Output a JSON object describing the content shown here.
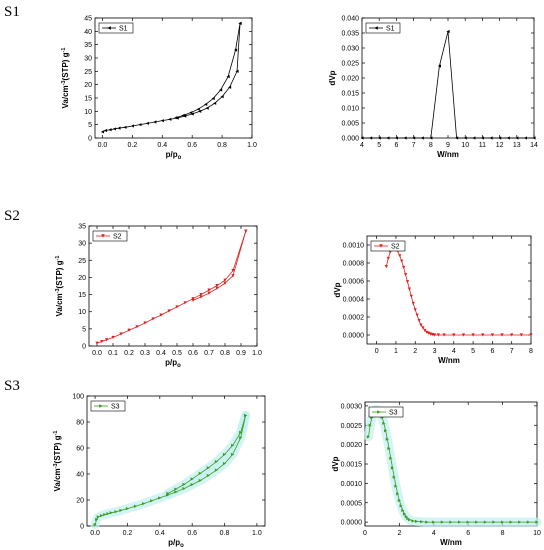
{
  "row_labels": [
    "S1",
    "S2",
    "S3"
  ],
  "chart_data": [
    {
      "id": "s1-iso",
      "type": "line",
      "sample": "S1",
      "color": "#000000",
      "marker": "tri-left",
      "legend": "S1",
      "xlabel": "p/p",
      "xlabel_sub": "o",
      "ylabel": "Va/cm",
      "ylabel_sup": "-3",
      "ylabel_tail": "(STP) g",
      "xlim": [
        -0.05,
        1.0
      ],
      "ylim": [
        0,
        45
      ],
      "xticks": [
        0.0,
        0.2,
        0.4,
        0.6,
        0.8,
        1.0
      ],
      "yticks": [
        0,
        5,
        10,
        15,
        20,
        25,
        30,
        35,
        40,
        45
      ],
      "tick_dec_x": 1,
      "tick_dec_y": 0,
      "series": [
        {
          "x": [
            0.0,
            0.02,
            0.05,
            0.08,
            0.11,
            0.15,
            0.2,
            0.25,
            0.3,
            0.35,
            0.4,
            0.45,
            0.5,
            0.55,
            0.6,
            0.65,
            0.7,
            0.75,
            0.8,
            0.85,
            0.9,
            0.92
          ],
          "y": [
            2.3,
            2.8,
            3.1,
            3.4,
            3.7,
            4.0,
            4.5,
            5.0,
            5.5,
            6.0,
            6.5,
            7.0,
            7.5,
            8.2,
            9.0,
            10.0,
            11.2,
            13.0,
            15.5,
            19.0,
            25.0,
            43.0
          ]
        },
        {
          "x": [
            0.92,
            0.89,
            0.84,
            0.79,
            0.74,
            0.69,
            0.64,
            0.59,
            0.54,
            0.49
          ],
          "y": [
            43.0,
            33.0,
            23.0,
            18.0,
            14.8,
            12.6,
            10.8,
            9.5,
            8.5,
            7.6
          ]
        }
      ]
    },
    {
      "id": "s1-psd",
      "type": "line",
      "sample": "S1",
      "color": "#000000",
      "marker": "tri-left",
      "legend": "S1",
      "xlabel": "W/nm",
      "ylabel": "dVp",
      "xlim": [
        4,
        14
      ],
      "ylim": [
        0,
        0.04
      ],
      "xticks": [
        4,
        5,
        6,
        7,
        8,
        9,
        10,
        11,
        12,
        13,
        14
      ],
      "yticks": [
        0.0,
        0.005,
        0.01,
        0.015,
        0.02,
        0.025,
        0.03,
        0.035,
        0.04
      ],
      "tick_dec_x": 0,
      "tick_dec_y": 3,
      "series": [
        {
          "x": [
            4.0,
            4.5,
            5.0,
            5.5,
            6.0,
            6.5,
            7.0,
            7.5,
            8.0,
            8.5,
            9.0,
            9.5,
            10.0,
            10.5,
            11.0,
            11.5,
            12.0,
            12.5,
            13.0,
            13.5,
            14.0
          ],
          "y": [
            0.0,
            0.0,
            0.0,
            0.0,
            0.0,
            0.0,
            0.0,
            0.0,
            0.0,
            0.024,
            0.0355,
            0.0,
            0.0,
            0.0,
            0.0,
            0.0,
            0.0,
            0.0,
            0.0,
            0.0,
            0.0
          ]
        }
      ]
    },
    {
      "id": "s2-iso",
      "type": "line",
      "sample": "S2",
      "color": "#e0201e",
      "marker": "tri-down",
      "legend": "S2",
      "xlabel": "p/p",
      "xlabel_sub": "o",
      "ylabel": "Va/cm",
      "ylabel_sup": "-3",
      "ylabel_tail": "(STP) g",
      "xlim": [
        -0.05,
        1.0
      ],
      "ylim": [
        0,
        35
      ],
      "xticks": [
        0.0,
        0.1,
        0.2,
        0.3,
        0.4,
        0.5,
        0.6,
        0.7,
        0.8,
        0.9,
        1.0
      ],
      "yticks": [
        0,
        5,
        10,
        15,
        20,
        25,
        30,
        35
      ],
      "tick_dec_x": 1,
      "tick_dec_y": 0,
      "series": [
        {
          "x": [
            0.0,
            0.03,
            0.06,
            0.1,
            0.15,
            0.2,
            0.25,
            0.3,
            0.35,
            0.4,
            0.45,
            0.5,
            0.55,
            0.6,
            0.65,
            0.7,
            0.75,
            0.8,
            0.85,
            0.93
          ],
          "y": [
            0.8,
            1.3,
            1.8,
            2.5,
            3.5,
            4.6,
            5.6,
            6.7,
            7.9,
            9.0,
            10.2,
            11.4,
            12.6,
            13.8,
            15.0,
            16.3,
            17.6,
            19.2,
            22.0,
            33.5
          ]
        },
        {
          "x": [
            0.93,
            0.85,
            0.8,
            0.75,
            0.7,
            0.65,
            0.6
          ],
          "y": [
            33.5,
            20.5,
            18.3,
            16.8,
            15.4,
            14.3,
            13.3
          ]
        }
      ]
    },
    {
      "id": "s2-psd",
      "type": "line",
      "sample": "S2",
      "color": "#e0201e",
      "marker": "tri-down",
      "legend": "S2",
      "xlabel": "W/nm",
      "ylabel": "dVp",
      "xlim": [
        -0.5,
        8
      ],
      "ylim": [
        -0.0001,
        0.0011
      ],
      "xticks": [
        0,
        1,
        2,
        3,
        4,
        5,
        6,
        7,
        8
      ],
      "yticks": [
        0.0,
        0.0002,
        0.0004,
        0.0006,
        0.0008,
        0.001
      ],
      "tick_dec_x": 0,
      "tick_dec_y": 4,
      "series": [
        {
          "x": [
            0.5,
            0.6,
            0.7,
            0.8,
            0.9,
            1.0,
            1.1,
            1.2,
            1.3,
            1.4,
            1.5,
            1.6,
            1.7,
            1.8,
            1.9,
            2.0,
            2.1,
            2.2,
            2.3,
            2.4,
            2.5,
            2.6,
            2.7,
            2.8,
            2.9,
            3.0,
            3.2,
            3.5,
            4.0,
            4.5,
            5.0,
            5.5,
            6.0,
            6.5,
            7.0,
            7.5,
            8.0
          ],
          "y": [
            0.00076,
            0.00085,
            0.00092,
            0.00096,
            0.00097,
            0.00096,
            0.00093,
            0.00088,
            0.00082,
            0.00075,
            0.00067,
            0.00059,
            0.00051,
            0.00043,
            0.00035,
            0.00028,
            0.00022,
            0.00016,
            0.00011,
            8e-05,
            5e-05,
            3e-05,
            2e-05,
            1e-05,
            5e-06,
            0.0,
            0.0,
            0.0,
            0.0,
            0.0,
            0.0,
            0.0,
            0.0,
            0.0,
            0.0,
            0.0,
            0.0
          ]
        }
      ]
    },
    {
      "id": "s3-iso",
      "type": "line",
      "sample": "S3",
      "color": "#3a9a1e",
      "marker": "tri-right",
      "legend": "S3",
      "xlabel": "p/p",
      "xlabel_sub": "o",
      "ylabel": "Va/cm",
      "ylabel_sup": "-3",
      "ylabel_tail": "(STP) g",
      "xlim": [
        -0.05,
        1.05
      ],
      "ylim": [
        0,
        100
      ],
      "xticks": [
        0.0,
        0.2,
        0.4,
        0.6,
        0.8,
        1.0
      ],
      "yticks": [
        0,
        20,
        40,
        60,
        80,
        100
      ],
      "tick_dec_x": 1,
      "tick_dec_y": 0,
      "series": [
        {
          "x": [
            0.0,
            0.01,
            0.02,
            0.04,
            0.06,
            0.08,
            0.1,
            0.13,
            0.16,
            0.2,
            0.25,
            0.3,
            0.35,
            0.4,
            0.45,
            0.5,
            0.55,
            0.6,
            0.65,
            0.7,
            0.75,
            0.8,
            0.85,
            0.9,
            0.93
          ],
          "y": [
            1.0,
            5.0,
            7.0,
            8.0,
            8.8,
            9.5,
            10.2,
            11.0,
            12.0,
            13.4,
            15.2,
            17.2,
            19.4,
            21.6,
            23.8,
            26.2,
            28.8,
            31.8,
            35.0,
            38.8,
            43.0,
            48.0,
            55.0,
            68.0,
            85.0
          ]
        },
        {
          "x": [
            0.93,
            0.9,
            0.85,
            0.8,
            0.75,
            0.7,
            0.65,
            0.6,
            0.55,
            0.5,
            0.45
          ],
          "y": [
            85.0,
            72.0,
            62.0,
            55.0,
            49.5,
            44.8,
            40.5,
            36.2,
            32.0,
            28.4,
            25.0
          ]
        }
      ]
    },
    {
      "id": "s3-psd",
      "type": "line",
      "sample": "S3",
      "color": "#3a9a1e",
      "marker": "tri-right",
      "legend": "S3",
      "xlabel": "W/nm",
      "ylabel": "dVp",
      "xlim": [
        0,
        10
      ],
      "ylim": [
        -0.0001,
        0.0031
      ],
      "xticks": [
        0,
        2,
        4,
        6,
        8,
        10
      ],
      "yticks": [
        0.0,
        0.0005,
        0.001,
        0.0015,
        0.002,
        0.0025,
        0.003
      ],
      "tick_dec_x": 0,
      "tick_dec_y": 4,
      "series": [
        {
          "x": [
            0.2,
            0.3,
            0.4,
            0.5,
            0.6,
            0.7,
            0.8,
            0.9,
            1.0,
            1.1,
            1.2,
            1.3,
            1.4,
            1.5,
            1.6,
            1.7,
            1.8,
            1.9,
            2.0,
            2.1,
            2.2,
            2.3,
            2.4,
            2.5,
            2.6,
            2.8,
            3.0,
            3.3,
            3.6,
            4.0,
            4.5,
            5.0,
            5.5,
            6.0,
            6.5,
            7.0,
            7.5,
            8.0,
            8.5,
            9.0,
            9.5,
            10.0
          ],
          "y": [
            0.0022,
            0.0025,
            0.0027,
            0.0028,
            0.0029,
            0.00291,
            0.00288,
            0.00281,
            0.0027,
            0.00255,
            0.00236,
            0.00214,
            0.0019,
            0.00165,
            0.0014,
            0.00116,
            0.00093,
            0.00073,
            0.00056,
            0.00042,
            0.0003,
            0.00021,
            0.00014,
            9e-05,
            6e-05,
            3e-05,
            2e-05,
            1e-05,
            0.0,
            0.0,
            0.0,
            0.0,
            0.0,
            0.0,
            0.0,
            0.0,
            0.0,
            0.0,
            0.0,
            0.0,
            0.0,
            0.0
          ]
        }
      ]
    }
  ]
}
